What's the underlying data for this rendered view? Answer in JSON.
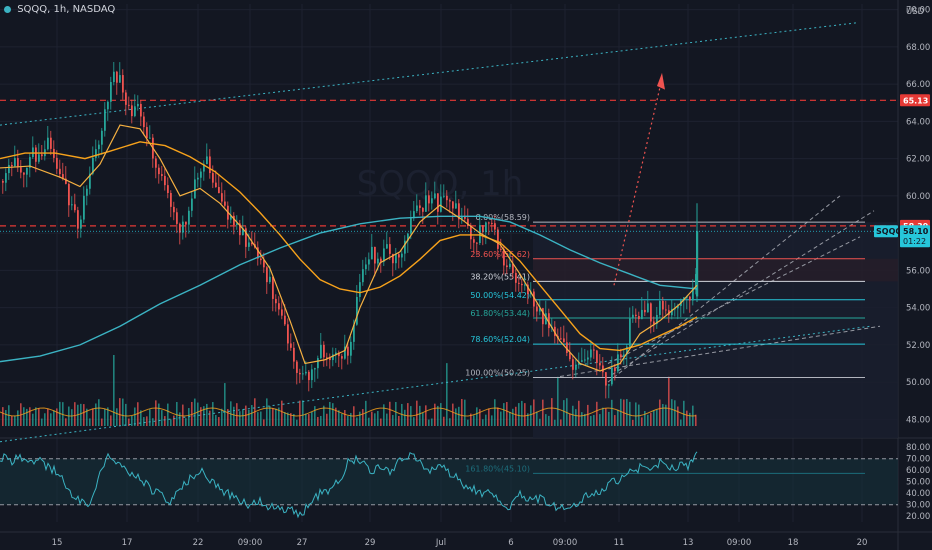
{
  "header": {
    "symbol": "SQQQ",
    "interval": "1h",
    "exchange": "NASDAQ",
    "currency": "USD"
  },
  "watermark": "SQQQ, 1h",
  "colors": {
    "background": "#131722",
    "grid": "#1e2230",
    "up": "#26a69a",
    "down": "#ef5350",
    "ema_fast": "#f7a21b",
    "ema_slow": "#3bb3c3",
    "fib": "#b2b5be",
    "rsi": "#3bb3c3",
    "level_red": "#e53935",
    "text": "#b2b5be"
  },
  "chart_data": [
    {
      "type": "candlestick",
      "title": "SQQQ, 1h, NASDAQ",
      "y_axis": {
        "unit": "USD",
        "ylim": [
          47.0,
          70.3
        ],
        "ticks": [
          48.0,
          50.0,
          52.0,
          54.0,
          56.0,
          58.0,
          60.0,
          62.0,
          64.0,
          66.0,
          68.0,
          70.0
        ]
      },
      "x_axis": {
        "ticks": [
          "15",
          "17",
          "22",
          "09:00",
          "27",
          "29",
          "Jul",
          "6",
          "09:00",
          "11",
          "13",
          "09:00",
          "18",
          "20"
        ]
      },
      "price_path": [
        [
          0,
          60.8
        ],
        [
          10,
          61.9
        ],
        [
          20,
          61.2
        ],
        [
          30,
          62.4
        ],
        [
          40,
          61.8
        ],
        [
          48,
          62.9
        ],
        [
          55,
          61.5
        ],
        [
          62,
          60.6
        ],
        [
          70,
          59.6
        ],
        [
          78,
          58.3
        ],
        [
          85,
          60.4
        ],
        [
          92,
          61.7
        ],
        [
          98,
          62.9
        ],
        [
          104,
          64.6
        ],
        [
          110,
          66.2
        ],
        [
          115,
          66.6
        ],
        [
          120,
          65.9
        ],
        [
          126,
          65.0
        ],
        [
          132,
          64.2
        ],
        [
          138,
          64.9
        ],
        [
          145,
          63.4
        ],
        [
          152,
          62.2
        ],
        [
          160,
          61.1
        ],
        [
          166,
          60.2
        ],
        [
          172,
          59.4
        ],
        [
          178,
          58.3
        ],
        [
          185,
          58.9
        ],
        [
          192,
          60.0
        ],
        [
          198,
          61.3
        ],
        [
          204,
          62.0
        ],
        [
          210,
          61.0
        ],
        [
          216,
          59.9
        ],
        [
          222,
          59.3
        ],
        [
          228,
          58.8
        ],
        [
          234,
          58.6
        ],
        [
          240,
          58.0
        ],
        [
          246,
          57.5
        ],
        [
          252,
          57.0
        ],
        [
          258,
          56.6
        ],
        [
          264,
          56.0
        ],
        [
          270,
          55.2
        ],
        [
          276,
          54.2
        ],
        [
          282,
          53.2
        ],
        [
          288,
          51.9
        ],
        [
          294,
          51.0
        ],
        [
          300,
          50.5
        ],
        [
          306,
          50.2
        ],
        [
          312,
          50.9
        ],
        [
          318,
          51.7
        ],
        [
          324,
          51.5
        ],
        [
          330,
          51.3
        ],
        [
          336,
          51.8
        ],
        [
          342,
          51.5
        ],
        [
          348,
          51.6
        ],
        [
          354,
          53.5
        ],
        [
          360,
          55.6
        ],
        [
          366,
          56.4
        ],
        [
          372,
          56.9
        ],
        [
          378,
          56.6
        ],
        [
          384,
          57.1
        ],
        [
          390,
          56.8
        ],
        [
          396,
          56.9
        ],
        [
          402,
          57.2
        ],
        [
          408,
          58.6
        ],
        [
          414,
          59.0
        ],
        [
          420,
          59.5
        ],
        [
          426,
          59.6
        ],
        [
          432,
          59.9
        ],
        [
          438,
          59.5
        ],
        [
          444,
          59.7
        ],
        [
          450,
          60.1
        ],
        [
          456,
          59.0
        ],
        [
          462,
          58.7
        ],
        [
          468,
          58.0
        ],
        [
          474,
          57.7
        ],
        [
          480,
          58.2
        ],
        [
          486,
          59.1
        ],
        [
          492,
          58.6
        ],
        [
          498,
          57.2
        ],
        [
          504,
          56.3
        ],
        [
          510,
          56.0
        ],
        [
          516,
          55.4
        ],
        [
          522,
          55.3
        ],
        [
          528,
          54.9
        ],
        [
          534,
          54.2
        ],
        [
          540,
          53.7
        ],
        [
          546,
          53.2
        ],
        [
          552,
          52.7
        ],
        [
          558,
          52.2
        ],
        [
          564,
          51.6
        ],
        [
          570,
          50.8
        ],
        [
          576,
          51.0
        ],
        [
          582,
          50.7
        ],
        [
          588,
          51.4
        ],
        [
          594,
          51.9
        ],
        [
          600,
          50.5
        ],
        [
          606,
          50.2
        ],
        [
          612,
          50.5
        ],
        [
          618,
          51.3
        ],
        [
          624,
          51.6
        ],
        [
          630,
          53.4
        ],
        [
          636,
          53.6
        ],
        [
          642,
          53.4
        ],
        [
          648,
          53.9
        ],
        [
          654,
          53.1
        ],
        [
          660,
          54.3
        ],
        [
          666,
          53.6
        ],
        [
          672,
          53.8
        ],
        [
          678,
          54.5
        ],
        [
          684,
          55.1
        ],
        [
          690,
          54.7
        ],
        [
          693,
          55.1
        ],
        [
          696,
          56.2
        ],
        [
          698,
          58.1
        ]
      ],
      "ema_fast": [
        [
          0,
          61.5
        ],
        [
          30,
          61.6
        ],
        [
          60,
          61.0
        ],
        [
          80,
          60.5
        ],
        [
          100,
          61.7
        ],
        [
          120,
          63.8
        ],
        [
          140,
          63.6
        ],
        [
          160,
          62.0
        ],
        [
          180,
          60.0
        ],
        [
          200,
          60.4
        ],
        [
          220,
          59.6
        ],
        [
          245,
          58.1
        ],
        [
          270,
          56.1
        ],
        [
          290,
          53.3
        ],
        [
          305,
          51.0
        ],
        [
          325,
          51.2
        ],
        [
          345,
          51.7
        ],
        [
          360,
          54.0
        ],
        [
          380,
          56.4
        ],
        [
          400,
          57.0
        ],
        [
          420,
          58.6
        ],
        [
          440,
          59.5
        ],
        [
          460,
          58.8
        ],
        [
          480,
          58.0
        ],
        [
          500,
          57.4
        ],
        [
          520,
          55.8
        ],
        [
          540,
          54.0
        ],
        [
          560,
          52.2
        ],
        [
          580,
          51.0
        ],
        [
          600,
          50.6
        ],
        [
          620,
          51.0
        ],
        [
          640,
          52.6
        ],
        [
          660,
          53.3
        ],
        [
          680,
          54.2
        ],
        [
          697,
          55.2
        ]
      ],
      "ema_slow": [
        [
          0,
          62.0
        ],
        [
          25,
          62.3
        ],
        [
          55,
          62.3
        ],
        [
          85,
          62.0
        ],
        [
          110,
          62.4
        ],
        [
          140,
          62.9
        ],
        [
          165,
          62.7
        ],
        [
          190,
          62.1
        ],
        [
          215,
          61.3
        ],
        [
          240,
          60.2
        ],
        [
          260,
          59.1
        ],
        [
          280,
          57.9
        ],
        [
          300,
          56.6
        ],
        [
          320,
          55.5
        ],
        [
          340,
          55.0
        ],
        [
          360,
          54.8
        ],
        [
          380,
          55.1
        ],
        [
          400,
          55.7
        ],
        [
          420,
          56.6
        ],
        [
          440,
          57.6
        ],
        [
          460,
          57.9
        ],
        [
          480,
          57.9
        ],
        [
          500,
          57.5
        ],
        [
          520,
          56.5
        ],
        [
          540,
          55.2
        ],
        [
          560,
          53.9
        ],
        [
          580,
          52.6
        ],
        [
          600,
          51.8
        ],
        [
          620,
          51.7
        ],
        [
          640,
          52.0
        ],
        [
          660,
          52.5
        ],
        [
          680,
          53.0
        ],
        [
          697,
          53.5
        ]
      ],
      "ema_long": [
        [
          0,
          51.1
        ],
        [
          40,
          51.4
        ],
        [
          80,
          52.0
        ],
        [
          120,
          53.0
        ],
        [
          160,
          54.2
        ],
        [
          200,
          55.2
        ],
        [
          240,
          56.3
        ],
        [
          280,
          57.2
        ],
        [
          320,
          58.0
        ],
        [
          360,
          58.5
        ],
        [
          400,
          58.8
        ],
        [
          440,
          58.9
        ],
        [
          480,
          58.9
        ],
        [
          510,
          58.6
        ],
        [
          540,
          57.9
        ],
        [
          570,
          57.1
        ],
        [
          600,
          56.4
        ],
        [
          630,
          55.8
        ],
        [
          660,
          55.2
        ],
        [
          697,
          55.0
        ]
      ],
      "fib_levels": [
        {
          "label": "0.00%(58.59)",
          "value": 58.59,
          "color": "#b2b5be"
        },
        {
          "label": "23.60%(56.62)",
          "value": 56.62,
          "color": "#ef5350"
        },
        {
          "label": "38.20%(55.41)",
          "value": 55.41,
          "color": "#d1d4dc"
        },
        {
          "label": "50.00%(54.42)",
          "value": 54.42,
          "color": "#26c6da"
        },
        {
          "label": "61.80%(53.44)",
          "value": 53.44,
          "color": "#26a69a"
        },
        {
          "label": "78.60%(52.04)",
          "value": 52.04,
          "color": "#26c6da"
        },
        {
          "label": "100.00%(50.25)",
          "value": 50.25,
          "color": "#b2b5be"
        },
        {
          "label": "161.80%(45.10)",
          "value": 45.1,
          "color": "#26c6da"
        }
      ],
      "horizontal_levels": [
        {
          "label": "65.13",
          "value": 65.13,
          "color": "#e53935"
        },
        {
          "label": "58.39",
          "value": 58.39,
          "color": "#e53935"
        }
      ],
      "last_price": {
        "symbol": "SQQQ",
        "value": 58.1,
        "countdown": "01:22"
      },
      "trendlines": [
        {
          "from": [
            0,
            63.8
          ],
          "to": [
            858,
            69.3
          ],
          "style": "dotted",
          "color": "#3bb3c3"
        },
        {
          "from": [
            0,
            46.8
          ],
          "to": [
            870,
            53.0
          ],
          "style": "dotted",
          "color": "#3bb3c3"
        }
      ]
    },
    {
      "type": "bar",
      "title": "Volume",
      "note": "volume histogram overlaid at bottom of price pane with moving average"
    },
    {
      "type": "line",
      "title": "RSI",
      "y_axis": {
        "ylim": [
          15,
          88
        ],
        "ticks": [
          20.0,
          30.0,
          40.0,
          50.0,
          60.0,
          70.0,
          80.0
        ]
      },
      "bands": {
        "upper": 70,
        "lower": 30
      },
      "values": [
        [
          0,
          72
        ],
        [
          10,
          68
        ],
        [
          20,
          70
        ],
        [
          30,
          65
        ],
        [
          40,
          68
        ],
        [
          50,
          62
        ],
        [
          60,
          56
        ],
        [
          70,
          40
        ],
        [
          80,
          34
        ],
        [
          90,
          28
        ],
        [
          100,
          60
        ],
        [
          110,
          74
        ],
        [
          120,
          66
        ],
        [
          130,
          58
        ],
        [
          140,
          52
        ],
        [
          150,
          44
        ],
        [
          160,
          40
        ],
        [
          170,
          30
        ],
        [
          180,
          43
        ],
        [
          190,
          52
        ],
        [
          200,
          60
        ],
        [
          210,
          52
        ],
        [
          220,
          44
        ],
        [
          230,
          38
        ],
        [
          240,
          34
        ],
        [
          250,
          30
        ],
        [
          260,
          33
        ],
        [
          270,
          28
        ],
        [
          280,
          25
        ],
        [
          290,
          28
        ],
        [
          300,
          22
        ],
        [
          310,
          30
        ],
        [
          320,
          40
        ],
        [
          330,
          44
        ],
        [
          340,
          52
        ],
        [
          350,
          70
        ],
        [
          360,
          68
        ],
        [
          370,
          60
        ],
        [
          380,
          62
        ],
        [
          390,
          58
        ],
        [
          400,
          68
        ],
        [
          410,
          74
        ],
        [
          420,
          66
        ],
        [
          430,
          60
        ],
        [
          440,
          64
        ],
        [
          450,
          58
        ],
        [
          460,
          50
        ],
        [
          470,
          45
        ],
        [
          480,
          40
        ],
        [
          490,
          44
        ],
        [
          500,
          34
        ],
        [
          510,
          28
        ],
        [
          520,
          38
        ],
        [
          530,
          33
        ],
        [
          540,
          36
        ],
        [
          550,
          30
        ],
        [
          560,
          26
        ],
        [
          570,
          28
        ],
        [
          580,
          34
        ],
        [
          590,
          40
        ],
        [
          600,
          38
        ],
        [
          610,
          48
        ],
        [
          620,
          52
        ],
        [
          630,
          60
        ],
        [
          640,
          62
        ],
        [
          650,
          58
        ],
        [
          660,
          66
        ],
        [
          670,
          60
        ],
        [
          680,
          64
        ],
        [
          690,
          64
        ],
        [
          697,
          76
        ]
      ]
    }
  ]
}
